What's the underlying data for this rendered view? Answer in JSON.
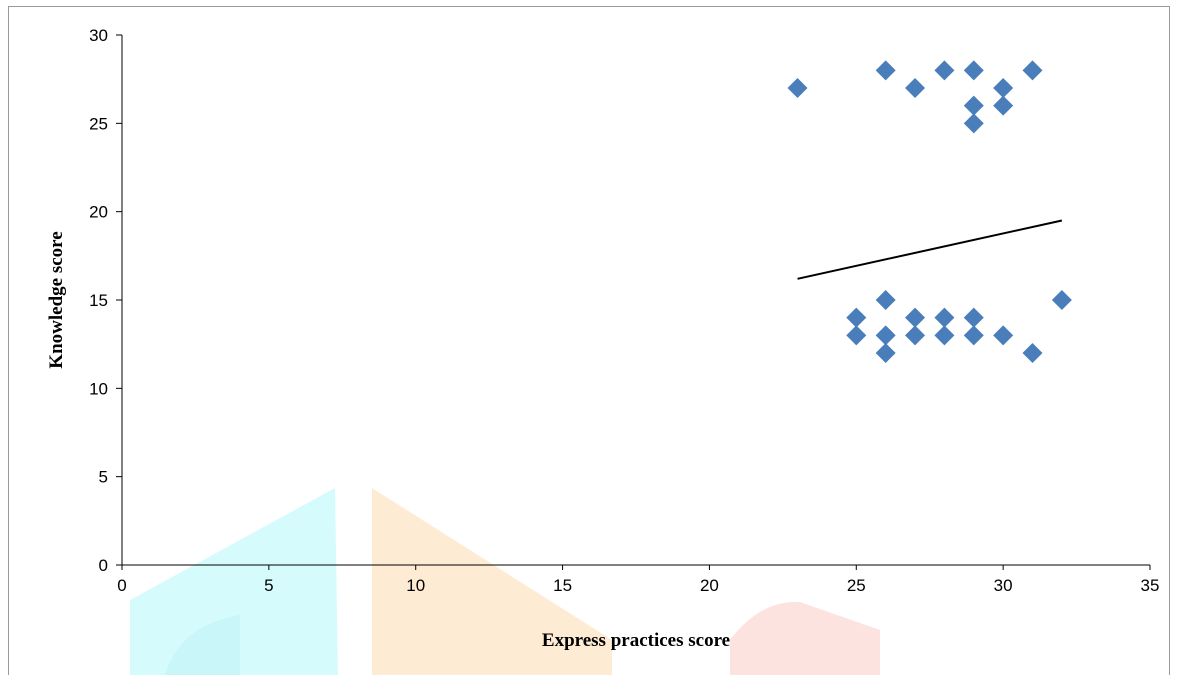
{
  "chart_data": {
    "type": "scatter",
    "xlabel": "Express practices score",
    "ylabel": "Knowledge  score",
    "xlim": [
      0,
      35
    ],
    "ylim": [
      0,
      30
    ],
    "x_ticks": [
      0,
      5,
      10,
      15,
      20,
      25,
      30,
      35
    ],
    "y_ticks": [
      0,
      5,
      10,
      15,
      20,
      25,
      30
    ],
    "grid": false,
    "marker": "diamond",
    "marker_color": "#4a7ebb",
    "series": [
      {
        "points": [
          {
            "x": 23,
            "y": 27
          },
          {
            "x": 26,
            "y": 28
          },
          {
            "x": 27,
            "y": 27
          },
          {
            "x": 28,
            "y": 28
          },
          {
            "x": 29,
            "y": 28
          },
          {
            "x": 29,
            "y": 26
          },
          {
            "x": 29,
            "y": 25
          },
          {
            "x": 30,
            "y": 27
          },
          {
            "x": 30,
            "y": 26
          },
          {
            "x": 31,
            "y": 28
          },
          {
            "x": 25,
            "y": 14
          },
          {
            "x": 25,
            "y": 13
          },
          {
            "x": 26,
            "y": 15
          },
          {
            "x": 26,
            "y": 13
          },
          {
            "x": 26,
            "y": 12
          },
          {
            "x": 27,
            "y": 14
          },
          {
            "x": 27,
            "y": 13
          },
          {
            "x": 28,
            "y": 14
          },
          {
            "x": 28,
            "y": 13
          },
          {
            "x": 29,
            "y": 14
          },
          {
            "x": 29,
            "y": 13
          },
          {
            "x": 30,
            "y": 13
          },
          {
            "x": 31,
            "y": 12
          },
          {
            "x": 32,
            "y": 15
          }
        ]
      }
    ],
    "trendline": {
      "x": [
        23,
        32
      ],
      "y": [
        16.2,
        19.5
      ],
      "color": "#000000"
    }
  }
}
